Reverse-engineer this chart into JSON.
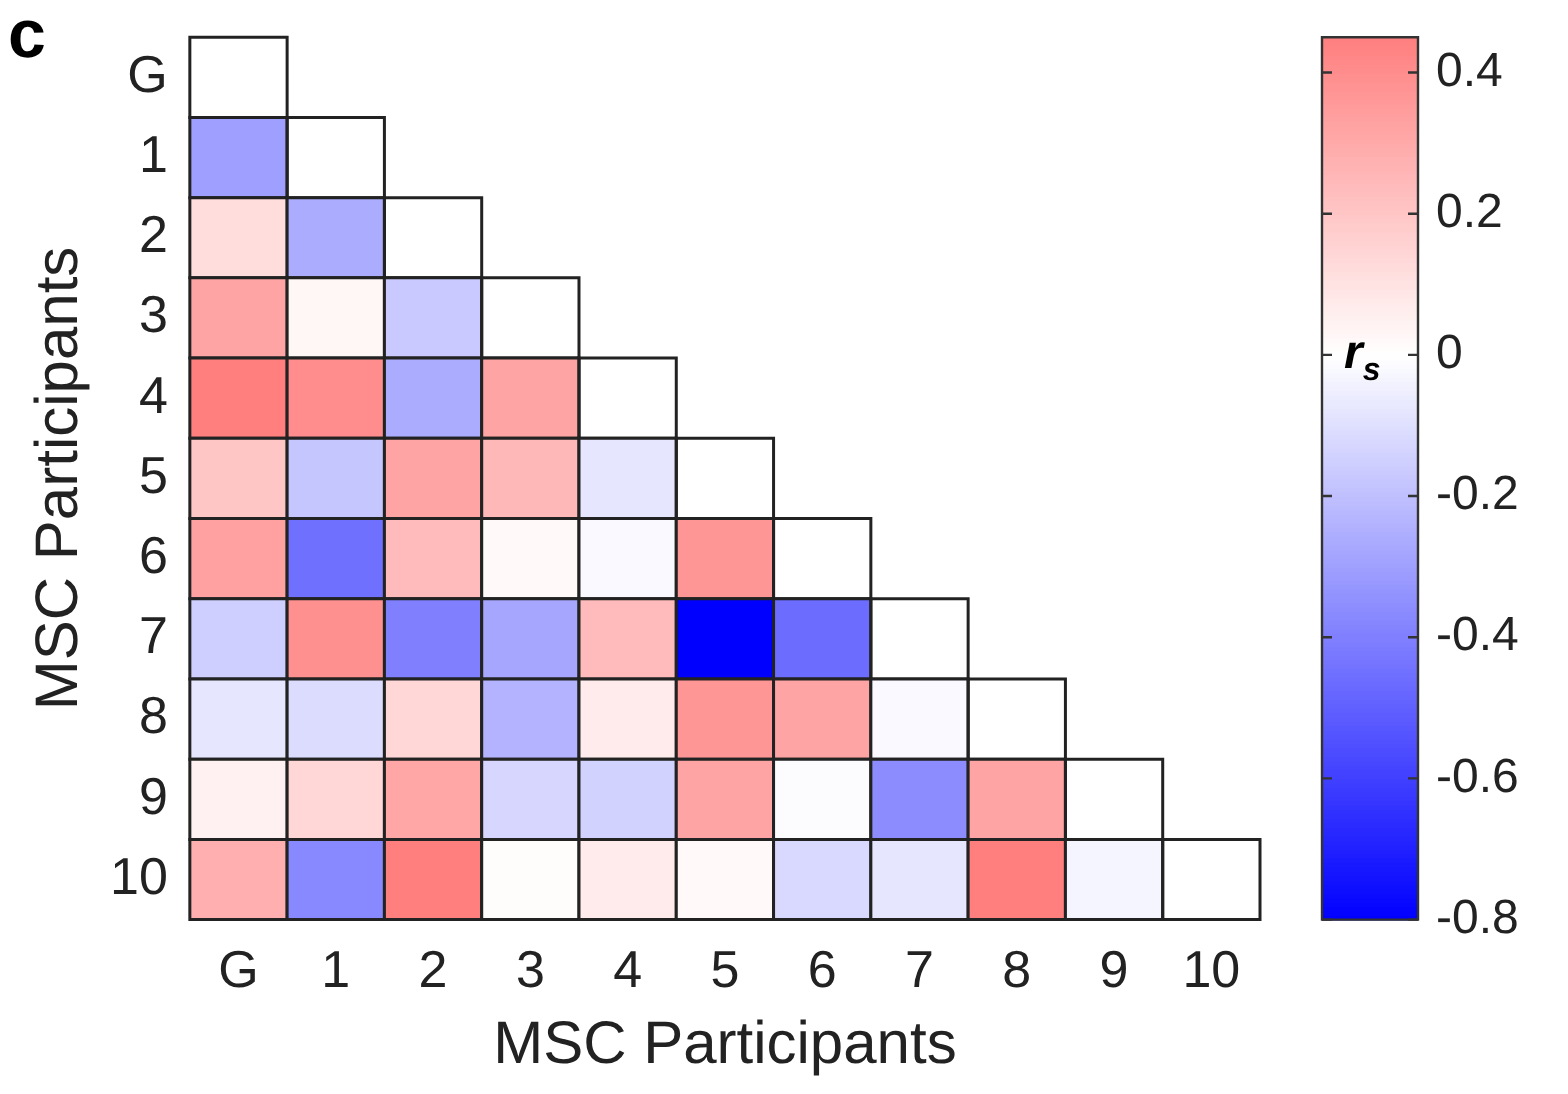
{
  "chart_data": {
    "type": "heatmap",
    "xlabel": "MSC Participants",
    "ylabel": "MSC Participants",
    "clabel": "r$_{s}$",
    "annotations": [
      "c"
    ],
    "categories": [
      "G",
      "1",
      "2",
      "3",
      "4",
      "5",
      "6",
      "7",
      "8",
      "9",
      "10"
    ],
    "y_categories": [
      "G",
      "1",
      "2",
      "3",
      "4",
      "5",
      "6",
      "7",
      "8",
      "9",
      "10"
    ],
    "cells": [
      [
        null,
        null,
        null,
        null,
        null,
        null,
        null,
        null,
        null,
        null,
        null
      ],
      [
        -0.3,
        null,
        null,
        null,
        null,
        null,
        null,
        null,
        null,
        null,
        null
      ],
      [
        0.12,
        -0.26,
        null,
        null,
        null,
        null,
        null,
        null,
        null,
        null,
        null
      ],
      [
        0.32,
        0.03,
        -0.17,
        null,
        null,
        null,
        null,
        null,
        null,
        null,
        null
      ],
      [
        0.45,
        0.4,
        -0.26,
        0.32,
        null,
        null,
        null,
        null,
        null,
        null,
        null
      ],
      [
        0.2,
        -0.18,
        0.32,
        0.25,
        -0.08,
        null,
        null,
        null,
        null,
        null,
        null
      ],
      [
        0.33,
        -0.45,
        0.24,
        0.02,
        -0.02,
        0.37,
        null,
        null,
        null,
        null,
        null
      ],
      [
        -0.15,
        0.39,
        -0.4,
        -0.28,
        0.24,
        -0.8,
        -0.46,
        null,
        null,
        null,
        null
      ],
      [
        -0.08,
        -0.11,
        0.14,
        -0.24,
        0.07,
        0.37,
        0.32,
        -0.02,
        null,
        null,
        null
      ],
      [
        0.05,
        0.14,
        0.31,
        -0.13,
        -0.14,
        0.32,
        -0.01,
        -0.36,
        0.32,
        null,
        null
      ],
      [
        0.28,
        -0.37,
        0.45,
        0.01,
        0.07,
        0.02,
        -0.12,
        -0.08,
        0.45,
        -0.03,
        null
      ]
    ],
    "clim": [
      -0.8,
      0.45
    ],
    "cticks": [
      -0.8,
      -0.6,
      -0.4,
      -0.2,
      0,
      0.2,
      0.4
    ]
  }
}
